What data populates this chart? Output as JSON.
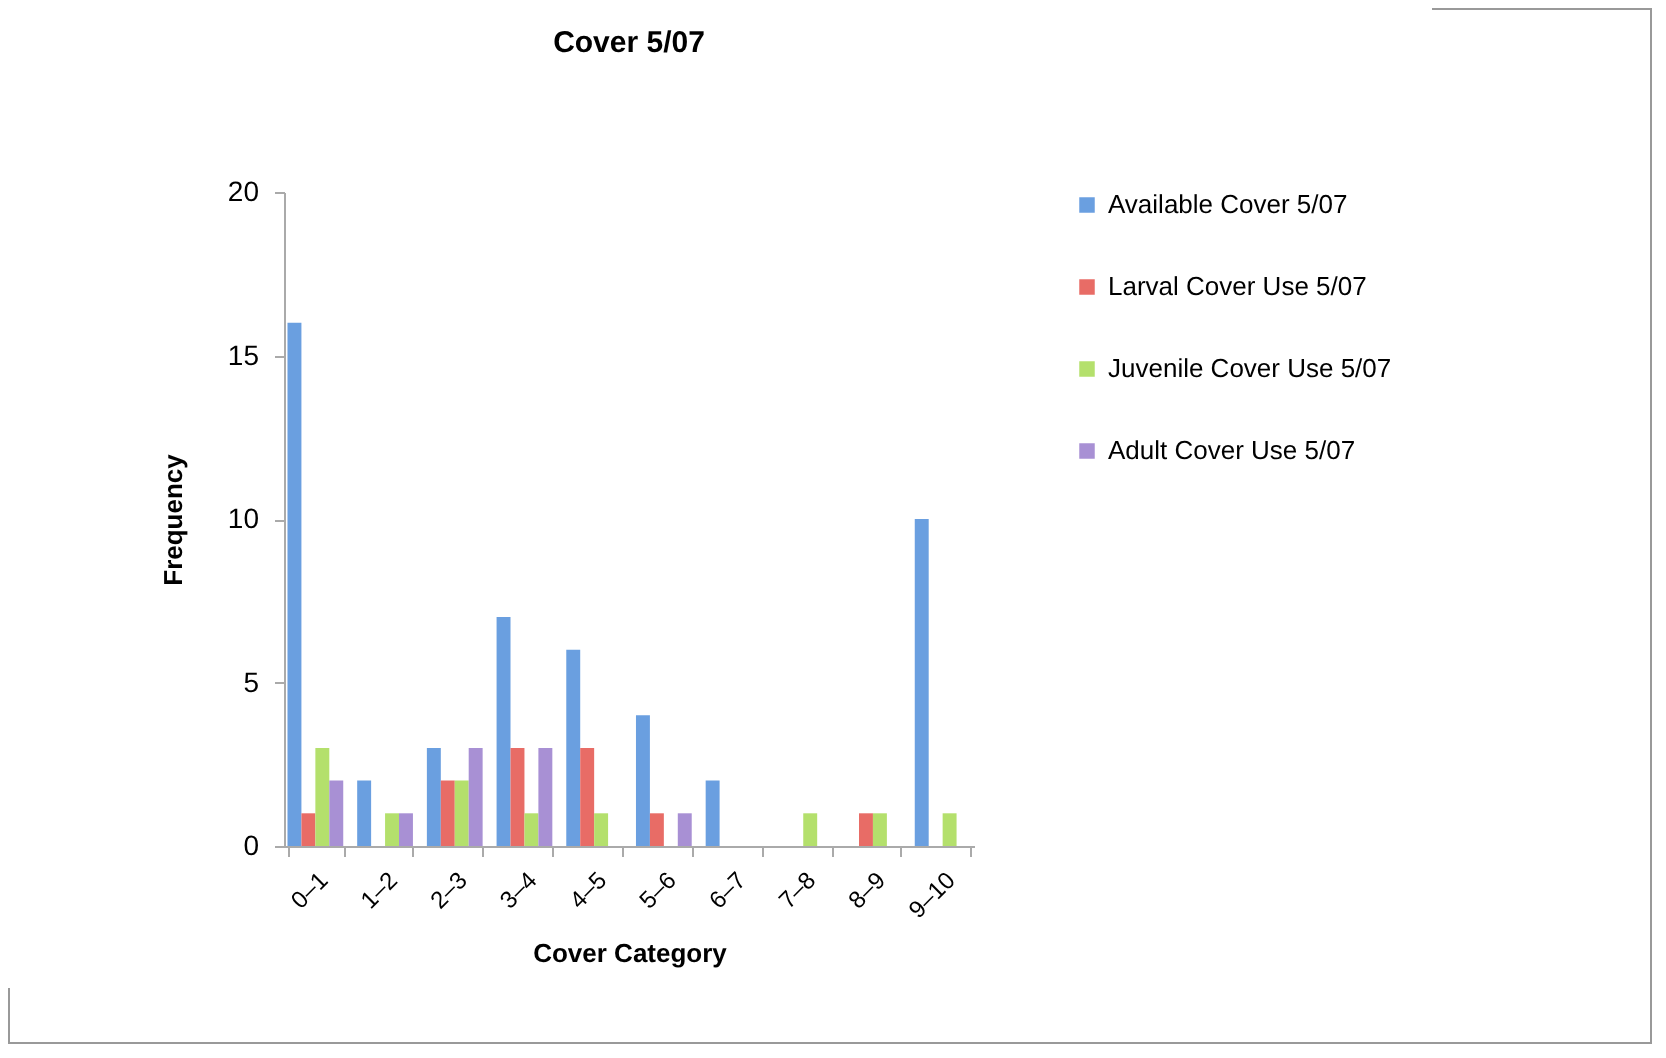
{
  "chart_data": {
    "type": "bar",
    "title": "Cover 5/07",
    "xlabel": "Cover Category",
    "ylabel": "Frequency",
    "categories": [
      "0–1",
      "1–2",
      "2–3",
      "3–4",
      "4–5",
      "5–6",
      "6–7",
      "7–8",
      "8–9",
      "9–10",
      null
    ],
    "series": [
      {
        "name": "Available Cover 5/07",
        "color": "#6a9fe0",
        "values": [
          16,
          2,
          3,
          7,
          6,
          4,
          2,
          0,
          0,
          10,
          null
        ]
      },
      {
        "name": "Larval Cover Use 5/07",
        "color": "#e86c66",
        "values": [
          1,
          0,
          2,
          3,
          3,
          1,
          0,
          0,
          1,
          0,
          null
        ]
      },
      {
        "name": "Juvenile Cover Use 5/07",
        "color": "#b4e06c",
        "values": [
          3,
          1,
          2,
          1,
          1,
          0,
          0,
          1,
          1,
          1,
          null
        ]
      },
      {
        "name": "Adult Cover Use 5/07",
        "color": "#a890d4",
        "values": [
          2,
          1,
          3,
          3,
          0,
          1,
          0,
          0,
          0,
          0,
          null
        ]
      }
    ],
    "ylim": [
      0,
      20
    ],
    "yticks": [
      0,
      5,
      10,
      15,
      20
    ],
    "grid": false,
    "legend": "right"
  }
}
